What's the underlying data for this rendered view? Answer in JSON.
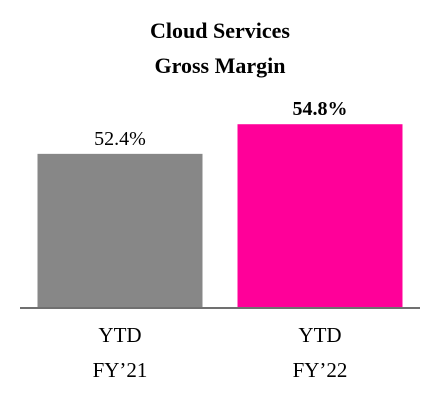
{
  "chart_data": {
    "type": "bar",
    "title": "Cloud Services",
    "subtitle": "Gross Margin",
    "xlabel": "",
    "ylabel": "",
    "categories": [
      [
        "YTD",
        "FY’21"
      ],
      [
        "YTD",
        "FY’22"
      ]
    ],
    "values": [
      52.4,
      54.8
    ],
    "value_labels": [
      "52.4%",
      "54.8%"
    ],
    "value_label_bold": [
      false,
      true
    ],
    "colors": [
      "#878787",
      "#ff0099"
    ],
    "axis_color": "#707070",
    "ylim": [
      40,
      60
    ],
    "grid": false,
    "legend": "none"
  }
}
